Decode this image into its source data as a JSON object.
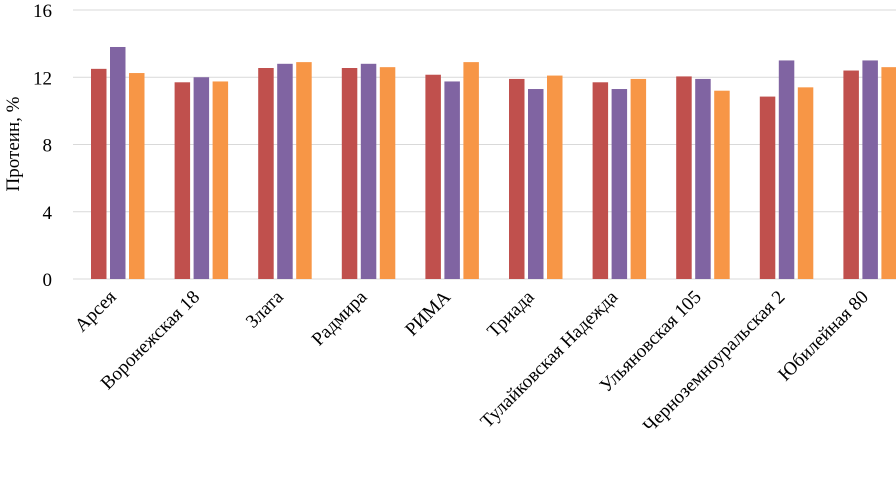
{
  "chart_data": {
    "type": "bar",
    "title": "",
    "xlabel": "",
    "ylabel": "Протеин, %",
    "ylim": [
      0,
      16
    ],
    "yticks": [
      0,
      4,
      8,
      12,
      16
    ],
    "ytick_labels": [
      "0",
      "4",
      "8",
      "12",
      "16"
    ],
    "grid": true,
    "legend": "none",
    "categories": [
      "Арсея",
      "Воронежская 18",
      "Злата",
      "Радмира",
      "РИМА",
      "Триада",
      "Тулайковская Надежда",
      "Ульяновская 105",
      "Черноземноуральская 2",
      "Юбилейная 80"
    ],
    "series": [
      {
        "name": "series-1",
        "color": "#c0504d",
        "values": [
          12.5,
          11.7,
          12.55,
          12.55,
          12.15,
          11.9,
          11.7,
          12.05,
          10.85,
          12.4
        ]
      },
      {
        "name": "series-2",
        "color": "#8064a2",
        "values": [
          13.8,
          12.0,
          12.8,
          12.8,
          11.75,
          11.3,
          11.3,
          11.9,
          13.0,
          13.0
        ]
      },
      {
        "name": "series-3",
        "color": "#f79646",
        "values": [
          12.25,
          11.75,
          12.9,
          12.6,
          12.9,
          12.1,
          11.9,
          11.2,
          11.4,
          12.6
        ]
      }
    ]
  }
}
